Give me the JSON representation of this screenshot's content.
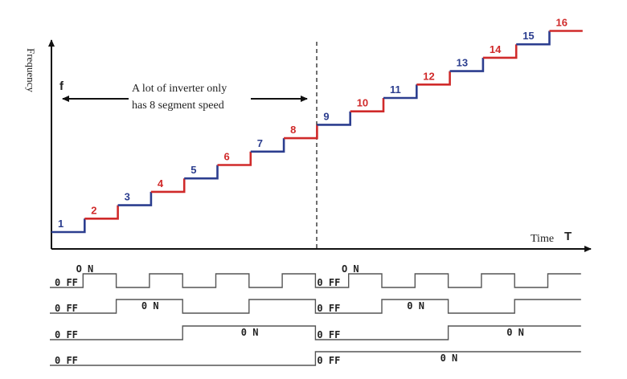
{
  "diagram": {
    "y_axis_name": "Frequency",
    "y_symbol": "f",
    "x_axis_name": "Time",
    "x_symbol": "T",
    "annotation_line1": "A lot of inverter only",
    "annotation_line2": "has 8 segment speed",
    "colors": {
      "blue": "#2c3e8f",
      "red": "#d02a2a",
      "axis": "#111111",
      "signal": "#555555"
    },
    "steps": [
      {
        "label": "1",
        "color": "blue"
      },
      {
        "label": "2",
        "color": "red"
      },
      {
        "label": "3",
        "color": "blue"
      },
      {
        "label": "4",
        "color": "red"
      },
      {
        "label": "5",
        "color": "blue"
      },
      {
        "label": "6",
        "color": "red"
      },
      {
        "label": "7",
        "color": "blue"
      },
      {
        "label": "8",
        "color": "red"
      },
      {
        "label": "9",
        "color": "blue"
      },
      {
        "label": "10",
        "color": "red"
      },
      {
        "label": "11",
        "color": "blue"
      },
      {
        "label": "12",
        "color": "red"
      },
      {
        "label": "13",
        "color": "blue"
      },
      {
        "label": "14",
        "color": "red"
      },
      {
        "label": "15",
        "color": "blue"
      },
      {
        "label": "16",
        "color": "red"
      }
    ],
    "signal_off_label": "0 FF",
    "signal_on_label": "O N",
    "signals": [
      {
        "name": "signal-1",
        "bits": [
          0,
          1,
          0,
          1,
          0,
          1,
          0,
          1,
          0,
          1,
          0,
          1,
          0,
          1,
          0,
          1
        ],
        "off_label": "0 FF",
        "on_label": "O N"
      },
      {
        "name": "signal-2",
        "bits": [
          0,
          0,
          1,
          1,
          0,
          0,
          1,
          1,
          0,
          0,
          1,
          1,
          0,
          0,
          1,
          1
        ],
        "off_label": "0 FF",
        "on_label": "0 N"
      },
      {
        "name": "signal-3",
        "bits": [
          0,
          0,
          0,
          0,
          1,
          1,
          1,
          1,
          0,
          0,
          0,
          0,
          1,
          1,
          1,
          1
        ],
        "off_label": "0 FF",
        "on_label": "0 N"
      },
      {
        "name": "signal-4",
        "bits": [
          0,
          0,
          0,
          0,
          0,
          0,
          0,
          0,
          1,
          1,
          1,
          1,
          1,
          1,
          1,
          1
        ],
        "off_label": "0 FF",
        "on_label": "0 N"
      }
    ]
  }
}
